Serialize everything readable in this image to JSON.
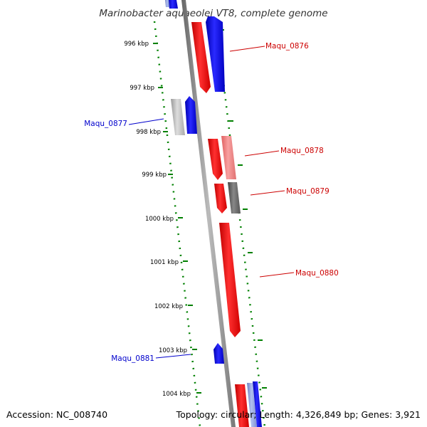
{
  "title": "Marinobacter aquaeolei VT8, complete genome",
  "footer": {
    "accession": "Accession: NC_008740",
    "summary": "Topology: circular; Length: 4,326,849 bp; Genes: 3,921"
  },
  "colors": {
    "forward": "#ff0000",
    "reverse": "#0000ff",
    "forward_light": "#f08080",
    "neutral": "#bbbbbb",
    "dark": "#666666",
    "backbone": "#888888",
    "ticks": "#008000"
  },
  "ticks": [
    {
      "label": "996 kbp",
      "kbp": 996
    },
    {
      "label": "997 kbp",
      "kbp": 997
    },
    {
      "label": "998 kbp",
      "kbp": 998
    },
    {
      "label": "999 kbp",
      "kbp": 999
    },
    {
      "label": "1000 kbp",
      "kbp": 1000
    },
    {
      "label": "1001 kbp",
      "kbp": 1001
    },
    {
      "label": "1002 kbp",
      "kbp": 1002
    },
    {
      "label": "1003 kbp",
      "kbp": 1003
    },
    {
      "label": "1004 kbp",
      "kbp": 1004
    }
  ],
  "genes": [
    {
      "label": "Maqu_0876",
      "strand": "reverse",
      "color": "#ff0000"
    },
    {
      "label": "Maqu_0877",
      "strand": "reverse",
      "color": "#0000ff"
    },
    {
      "label": "Maqu_0878",
      "strand": "forward",
      "color": "#ff0000"
    },
    {
      "label": "Maqu_0879",
      "strand": "forward",
      "color": "#ff0000"
    },
    {
      "label": "Maqu_0880",
      "strand": "forward",
      "color": "#ff0000"
    },
    {
      "label": "Maqu_0881",
      "strand": "reverse",
      "color": "#0000ff"
    }
  ]
}
